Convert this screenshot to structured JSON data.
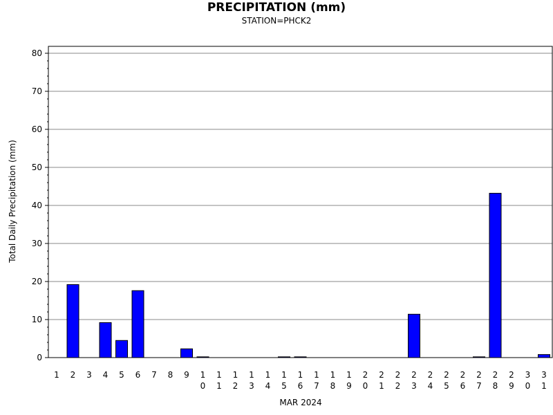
{
  "chart_data": {
    "type": "bar",
    "title": "PRECIPITATION (mm)",
    "subtitle": "STATION=PHCK2",
    "xlabel": "MAR 2024",
    "ylabel": "Total Daily Precipitation (mm)",
    "categories": [
      "1",
      "2",
      "3",
      "4",
      "5",
      "6",
      "7",
      "8",
      "9",
      "10",
      "11",
      "12",
      "13",
      "14",
      "15",
      "16",
      "17",
      "18",
      "19",
      "20",
      "21",
      "22",
      "23",
      "24",
      "25",
      "26",
      "27",
      "28",
      "29",
      "30",
      "31"
    ],
    "values": [
      0,
      19.2,
      0,
      9.2,
      4.5,
      17.6,
      0,
      0,
      2.3,
      0.2,
      0,
      0,
      0,
      0,
      0.2,
      0.2,
      0,
      0,
      0,
      0,
      0,
      0,
      11.4,
      0,
      0,
      0,
      0.2,
      43.2,
      0,
      0,
      0.8
    ],
    "ylim": [
      0,
      80
    ],
    "yticks": [
      0,
      10,
      20,
      30,
      40,
      50,
      60,
      70,
      80
    ],
    "grid": true,
    "bar_color": "#0000ff"
  }
}
